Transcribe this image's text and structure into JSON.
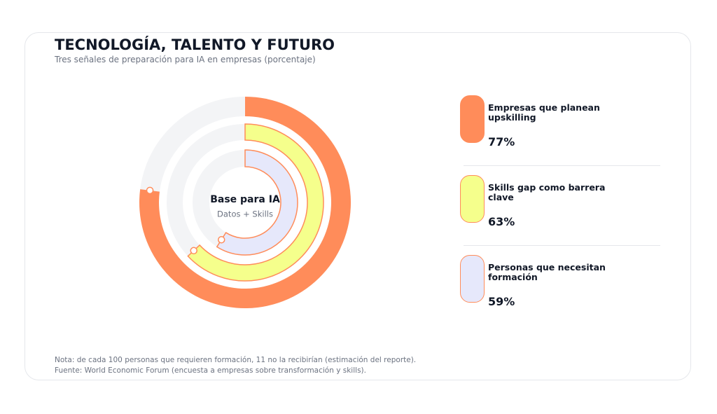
{
  "chart_data": {
    "type": "radialbar",
    "title": "TECNOLOGÍA, TALENTO Y FUTURO",
    "subtitle": "Tres señales de preparación para IA en empresas (porcentaje)",
    "center_title": "Base para IA",
    "center_subtitle": "Datos + Skills",
    "ylim": [
      0,
      100
    ],
    "track_color": "#f3f4f6",
    "border_color": "#ff8c5a",
    "series": [
      {
        "name": "Empresas que planean upskilling",
        "color": "#ff8c5a",
        "values": [
          77
        ],
        "value_labels": [
          "77%"
        ]
      },
      {
        "name": "Skills gap como barrera clave",
        "color": "#f5ff8c",
        "values": [
          63
        ],
        "value_labels": [
          "63%"
        ]
      },
      {
        "name": "Personas que necesitan formación",
        "color": "#e6e8fb",
        "values": [
          59
        ],
        "value_labels": [
          "59%"
        ]
      }
    ],
    "note": "Nota: de cada 100 personas que requieren formación, 11 no la recibirían (estimación del reporte).",
    "source": "Fuente: World Economic Forum (encuesta a empresas sobre transformación y skills)."
  }
}
